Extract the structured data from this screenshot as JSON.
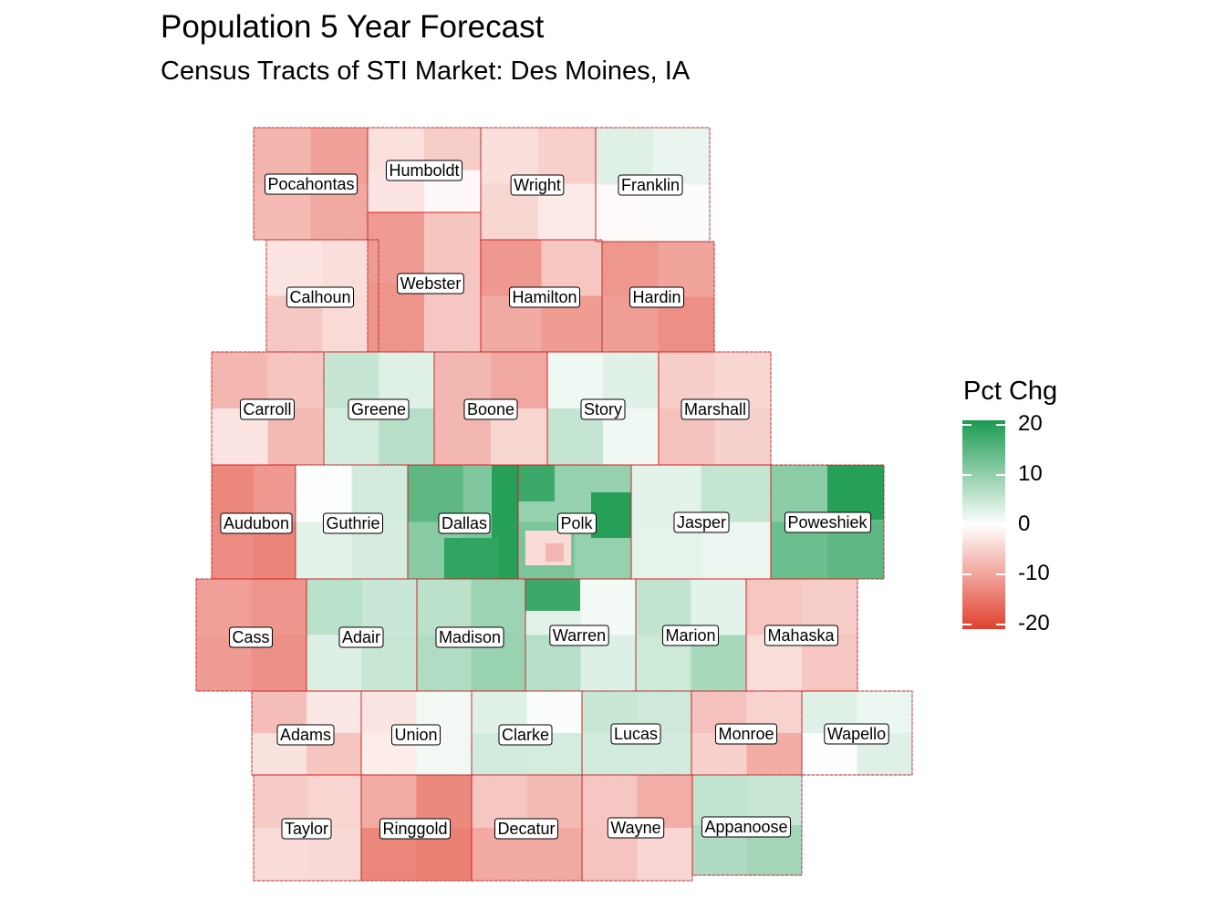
{
  "title": "Population 5 Year Forecast",
  "subtitle": "Census Tracts of STI Market: Des Moines, IA",
  "legend": {
    "title": "Pct Chg",
    "ticks": [
      "20",
      "10",
      "0",
      "-10",
      "-20"
    ],
    "tick_values": [
      20,
      10,
      0,
      -10,
      -20
    ],
    "range": [
      -21,
      21
    ],
    "colors": {
      "low": "#e0402f",
      "mid": "#ffffff",
      "high": "#1b9a50"
    }
  },
  "counties": [
    {
      "name": "Pocahontas",
      "value": -8
    },
    {
      "name": "Humboldt",
      "value": -3
    },
    {
      "name": "Wright",
      "value": -4
    },
    {
      "name": "Franklin",
      "value": 2
    },
    {
      "name": "Calhoun",
      "value": -4
    },
    {
      "name": "Webster",
      "value": -9
    },
    {
      "name": "Hamilton",
      "value": -9
    },
    {
      "name": "Hardin",
      "value": -11
    },
    {
      "name": "Carroll",
      "value": -6
    },
    {
      "name": "Greene",
      "value": 5
    },
    {
      "name": "Boone",
      "value": -7
    },
    {
      "name": "Story",
      "value": 3
    },
    {
      "name": "Marshall",
      "value": -6
    },
    {
      "name": "Audubon",
      "value": -11
    },
    {
      "name": "Guthrie",
      "value": 3
    },
    {
      "name": "Dallas",
      "value": 12
    },
    {
      "name": "Polk",
      "value": 10
    },
    {
      "name": "Jasper",
      "value": 4
    },
    {
      "name": "Poweshiek",
      "value": 12
    },
    {
      "name": "Cass",
      "value": -13
    },
    {
      "name": "Adair",
      "value": 6
    },
    {
      "name": "Madison",
      "value": 8
    },
    {
      "name": "Warren",
      "value": 4
    },
    {
      "name": "Marion",
      "value": 5
    },
    {
      "name": "Mahaska",
      "value": -6
    },
    {
      "name": "Adams",
      "value": -5
    },
    {
      "name": "Union",
      "value": 0
    },
    {
      "name": "Clarke",
      "value": 2
    },
    {
      "name": "Lucas",
      "value": 7
    },
    {
      "name": "Monroe",
      "value": -7
    },
    {
      "name": "Wapello",
      "value": 3
    },
    {
      "name": "Taylor",
      "value": -3
    },
    {
      "name": "Ringgold",
      "value": -11
    },
    {
      "name": "Decatur",
      "value": -7
    },
    {
      "name": "Wayne",
      "value": -6
    },
    {
      "name": "Appanoose",
      "value": 6
    }
  ]
}
